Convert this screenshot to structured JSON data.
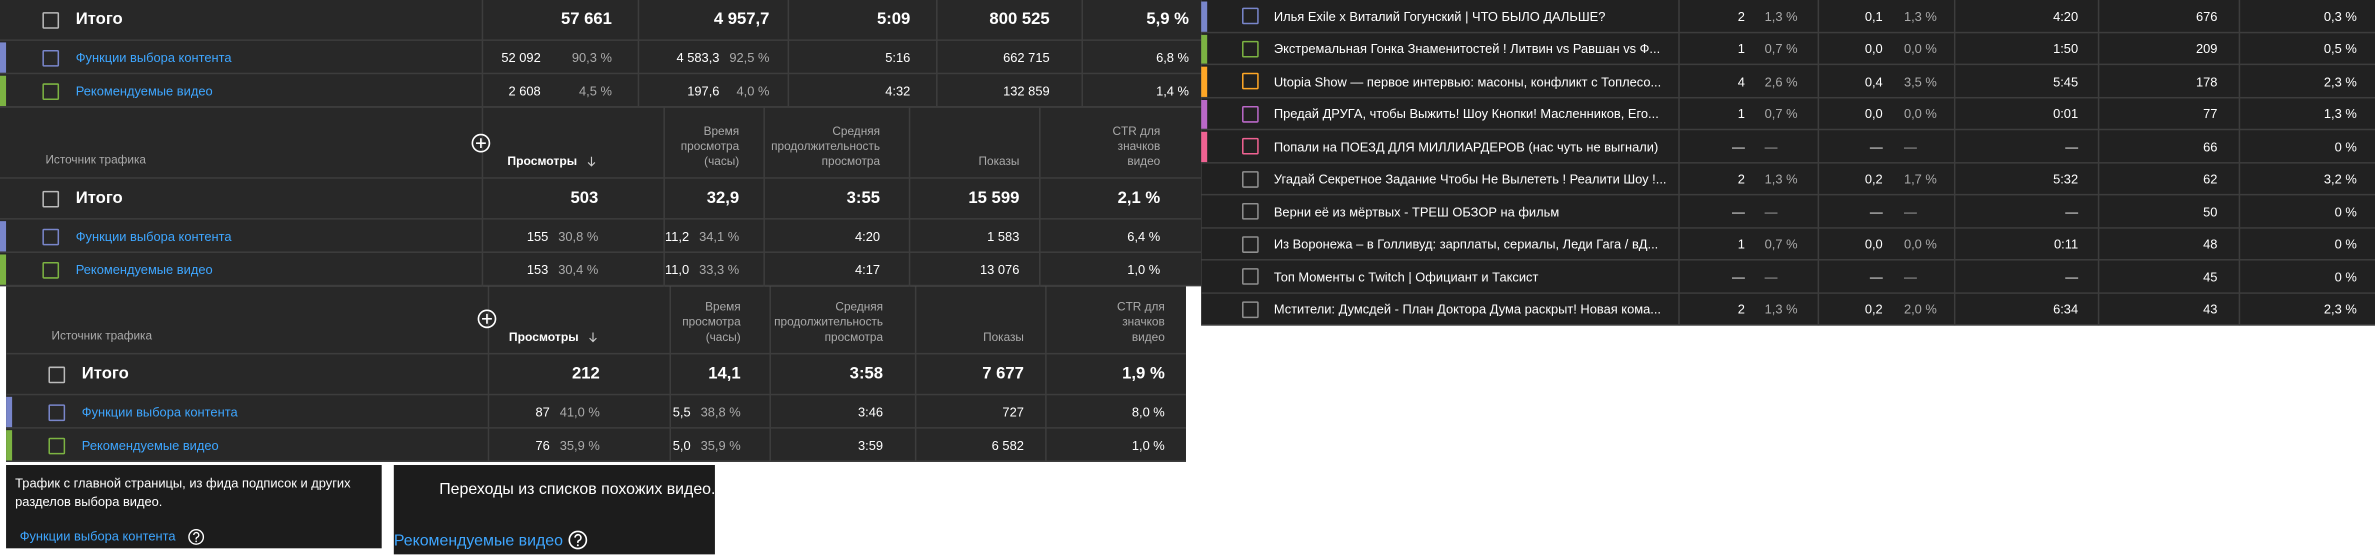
{
  "tables": [
    {
      "total": {
        "label": "Итого",
        "values": [
          "57 661",
          "4 957,7",
          "5:09",
          "800 525",
          "5,9 %"
        ]
      },
      "rows": [
        {
          "label": "Функции выбора контента",
          "color": "#7986cb",
          "values": [
            "52 092",
            "4 583,3",
            "5:16",
            "662 715",
            "6,8 %"
          ],
          "shares": [
            "90,3 %",
            "92,5 %"
          ]
        },
        {
          "label": "Рекомендуемые видео",
          "color": "#7cb342",
          "values": [
            "2 608",
            "197,6",
            "4:32",
            "132 859",
            "1,4 %"
          ],
          "shares": [
            "4,5 %",
            "4,0 %"
          ]
        }
      ]
    },
    {
      "headers": [
        "Источник трафика",
        "Просмотры",
        "Время просмотра (часы)",
        "Средняя продолжительность просмотра",
        "Показы",
        "CTR для значков видео"
      ],
      "total": {
        "label": "Итого",
        "values": [
          "503",
          "32,9",
          "3:55",
          "15 599",
          "2,1 %"
        ]
      },
      "rows": [
        {
          "label": "Функции выбора контента",
          "color": "#7986cb",
          "values": [
            "155",
            "11,2",
            "4:20",
            "1 583",
            "6,4 %"
          ],
          "shares": [
            "30,8 %",
            "34,1 %"
          ]
        },
        {
          "label": "Рекомендуемые видео",
          "color": "#7cb342",
          "values": [
            "153",
            "11,0",
            "4:17",
            "13 076",
            "1,0 %"
          ],
          "shares": [
            "30,4 %",
            "33,3 %"
          ]
        }
      ]
    },
    {
      "headers": [
        "Источник трафика",
        "Просмотры",
        "Время просмотра (часы)",
        "Средняя продолжительность просмотра",
        "Показы",
        "CTR для значков видео"
      ],
      "total": {
        "label": "Итого",
        "values": [
          "212",
          "14,1",
          "3:58",
          "7 677",
          "1,9 %"
        ]
      },
      "rows": [
        {
          "label": "Функции выбора контента",
          "color": "#7986cb",
          "values": [
            "87",
            "5,5",
            "3:46",
            "727",
            "8,0 %"
          ],
          "shares": [
            "41,0 %",
            "38,8 %"
          ]
        },
        {
          "label": "Рекомендуемые видео",
          "color": "#7cb342",
          "values": [
            "76",
            "5,0",
            "3:59",
            "6 582",
            "1,0 %"
          ],
          "shares": [
            "35,9 %",
            "35,9 %"
          ]
        }
      ]
    }
  ],
  "videos": [
    {
      "title": "Илья Exile x Виталий Гогунский | ЧТО БЫЛО ДАЛЬШЕ?",
      "color": "#7986cb",
      "views": "2",
      "views_share": "1,3 %",
      "watch": "0,1",
      "watch_share": "1,3 %",
      "avg": "4:20",
      "impressions": "676",
      "ctr": "0,3 %"
    },
    {
      "title": "Экстремальная Гонка Знаменитостей ! Литвин vs Равшан vs Ф...",
      "color": "#7cb342",
      "views": "1",
      "views_share": "0,7 %",
      "watch": "0,0",
      "watch_share": "0,0 %",
      "avg": "1:50",
      "impressions": "209",
      "ctr": "0,5 %"
    },
    {
      "title": "Utopia Show — первое интервью: масоны, конфликт с Топлесо...",
      "color": "#ffa726",
      "views": "4",
      "views_share": "2,6 %",
      "watch": "0,4",
      "watch_share": "3,5 %",
      "avg": "5:45",
      "impressions": "178",
      "ctr": "2,3 %"
    },
    {
      "title": "Предай ДРУГА, чтобы Выжить! Шоу Кнопки! Масленников, Его...",
      "color": "#ba68c8",
      "views": "1",
      "views_share": "0,7 %",
      "watch": "0,0",
      "watch_share": "0,0 %",
      "avg": "0:01",
      "impressions": "77",
      "ctr": "1,3 %"
    },
    {
      "title": "Попали на ПОЕЗД ДЛЯ МИЛЛИАРДЕРОВ (нас чуть не выгнали)",
      "color": "#f06292",
      "views": "—",
      "views_share": "—",
      "watch": "—",
      "watch_share": "—",
      "avg": "—",
      "impressions": "66",
      "ctr": "0 %"
    },
    {
      "title": "Угадай Секретное Задание Чтобы Не Вылететь ! Реалити Шоу !...",
      "color": "#909090",
      "views": "2",
      "views_share": "1,3 %",
      "watch": "0,2",
      "watch_share": "1,7 %",
      "avg": "5:32",
      "impressions": "62",
      "ctr": "3,2 %"
    },
    {
      "title": "Верни её из мёртвых - ТРЕШ ОБЗОР на фильм",
      "color": "#909090",
      "views": "—",
      "views_share": "—",
      "watch": "—",
      "watch_share": "—",
      "avg": "—",
      "impressions": "50",
      "ctr": "0 %"
    },
    {
      "title": "Из Воронежа – в Голливуд: зарплаты, сериалы, Леди Гага / вД...",
      "color": "#909090",
      "views": "1",
      "views_share": "0,7 %",
      "watch": "0,0",
      "watch_share": "0,0 %",
      "avg": "0:11",
      "impressions": "48",
      "ctr": "0 %"
    },
    {
      "title": "Топ Моменты с Twitch | Официант и Таксист",
      "color": "#909090",
      "views": "—",
      "views_share": "—",
      "watch": "—",
      "watch_share": "—",
      "avg": "—",
      "impressions": "45",
      "ctr": "0 %"
    },
    {
      "title": "Мстители: Думсдей - План Доктора Дума раскрыт! Новая кома...",
      "color": "#909090",
      "views": "2",
      "views_share": "1,3 %",
      "watch": "0,2",
      "watch_share": "2,0 %",
      "avg": "6:34",
      "impressions": "43",
      "ctr": "2,3 %"
    }
  ],
  "tooltips": [
    {
      "text": "Трафик с главной страницы, из фида подписок и других разделов выбора видео.",
      "link": "Функции выбора контента"
    },
    {
      "text": "Переходы из списков похожих видео.",
      "link": "Рекомендуемые видео"
    }
  ]
}
